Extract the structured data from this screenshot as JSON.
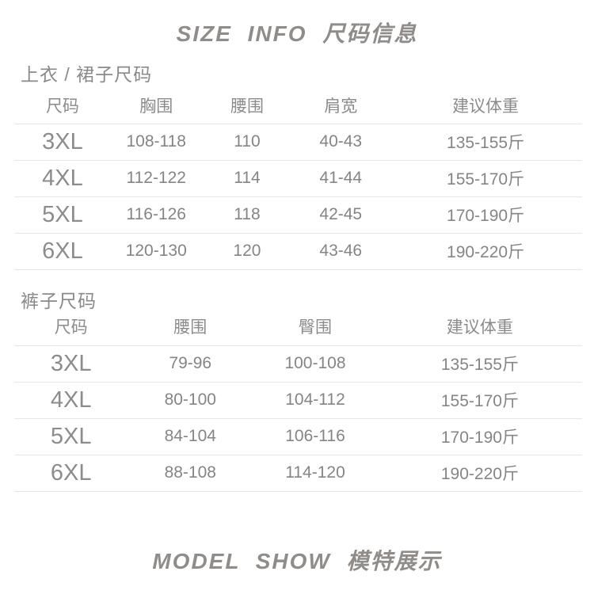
{
  "page": {
    "title": "SIZE INFO 尺码信息",
    "footer": "MODEL SHOW 模特展示"
  },
  "colors": {
    "text_gray": "#8a8a8a",
    "divider": "#e6e6e6",
    "background": "#ffffff"
  },
  "tops_table": {
    "section_title": "上衣 / 裙子尺码",
    "headers": [
      "尺码",
      "胸围",
      "腰围",
      "肩宽",
      "建议体重"
    ],
    "rows": [
      [
        "3XL",
        "108-118",
        "110",
        "40-43",
        "135-155斤"
      ],
      [
        "4XL",
        "112-122",
        "114",
        "41-44",
        "155-170斤"
      ],
      [
        "5XL",
        "116-126",
        "118",
        "42-45",
        "170-190斤"
      ],
      [
        "6XL",
        "120-130",
        "120",
        "43-46",
        "190-220斤"
      ]
    ]
  },
  "pants_table": {
    "section_title": "裤子尺码",
    "headers": [
      "尺码",
      "腰围",
      "臀围",
      "建议体重"
    ],
    "rows": [
      [
        "3XL",
        "79-96",
        "100-108",
        "135-155斤"
      ],
      [
        "4XL",
        "80-100",
        "104-112",
        "155-170斤"
      ],
      [
        "5XL",
        "84-104",
        "106-116",
        "170-190斤"
      ],
      [
        "6XL",
        "88-108",
        "114-120",
        "190-220斤"
      ]
    ]
  }
}
